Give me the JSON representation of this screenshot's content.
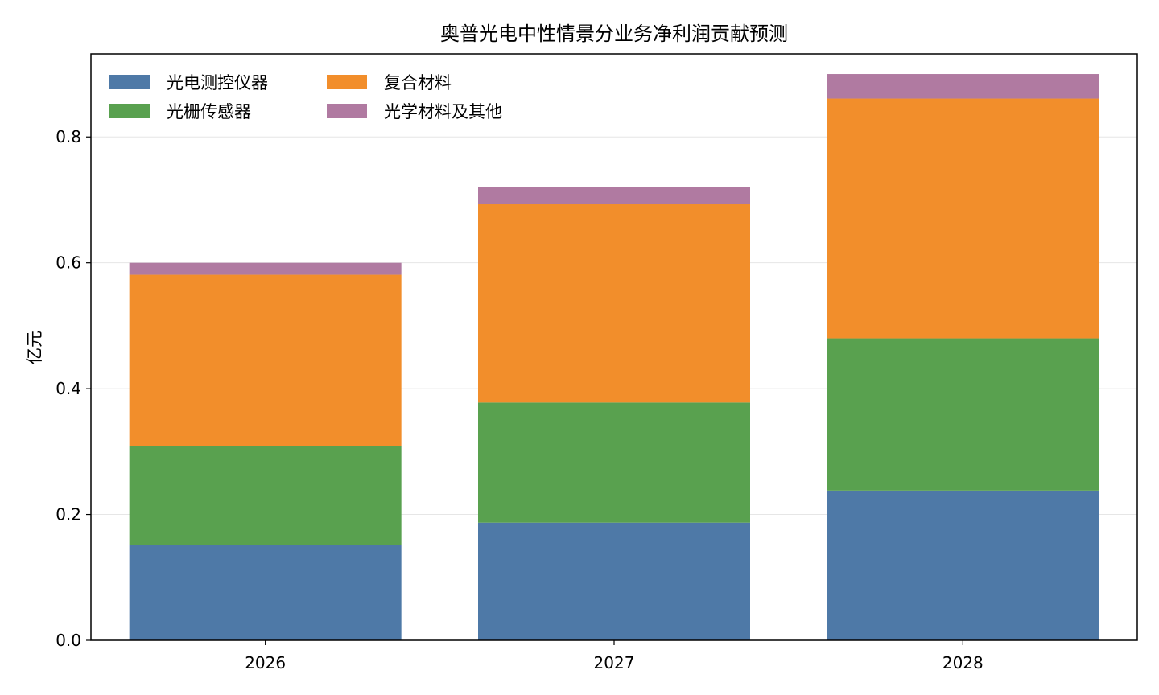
{
  "chart_data": {
    "type": "bar",
    "stacked": true,
    "title": "奥普光电中性情景分业务净利润贡献预测",
    "xlabel": "",
    "ylabel": "亿元",
    "categories": [
      "2026",
      "2027",
      "2028"
    ],
    "ylim": [
      0,
      0.932
    ],
    "yticks": [
      "0.0",
      "0.2",
      "0.4",
      "0.6",
      "0.8"
    ],
    "ytick_values": [
      0.0,
      0.2,
      0.4,
      0.6,
      0.8
    ],
    "grid": true,
    "legend_position": "top-left",
    "series": [
      {
        "name": "光电测控仪器",
        "color": "#4e79a7",
        "values": [
          0.152,
          0.187,
          0.238
        ]
      },
      {
        "name": "光栅传感器",
        "color": "#59a14f",
        "values": [
          0.157,
          0.191,
          0.242
        ]
      },
      {
        "name": "复合材料",
        "color": "#f28e2b",
        "values": [
          0.272,
          0.315,
          0.381
        ]
      },
      {
        "name": "光学材料及其他",
        "color": "#b07aa1",
        "values": [
          0.019,
          0.027,
          0.039
        ]
      }
    ]
  }
}
